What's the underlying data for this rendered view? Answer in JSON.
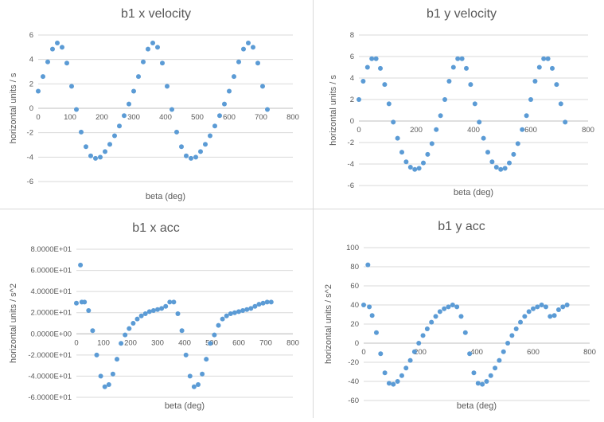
{
  "chart_data": [
    {
      "type": "scatter",
      "title": "b1 x velocity",
      "xlabel": "beta (deg)",
      "ylabel": "horizontal units / s",
      "xlim": [
        0,
        800
      ],
      "ylim": [
        -6,
        6
      ],
      "x_ticks": [
        "0",
        "100",
        "200",
        "300",
        "400",
        "500",
        "600",
        "700",
        "800"
      ],
      "y_ticks": [
        "6",
        "4",
        "2",
        "0",
        "-2",
        "-4",
        "-6"
      ],
      "grid": true,
      "color": "#5b9bd5",
      "series": [
        {
          "x": [
            0,
            15,
            30,
            45,
            60,
            75,
            90,
            105,
            120,
            135,
            150,
            165,
            180,
            195,
            210,
            225,
            240,
            255,
            270,
            285,
            300,
            315,
            330,
            345,
            360,
            375,
            390,
            405,
            420,
            435,
            450,
            465,
            480,
            495,
            510,
            525,
            540,
            555,
            570,
            585,
            600,
            615,
            630,
            645,
            660,
            675,
            690,
            705,
            720
          ],
          "y": [
            1.4,
            2.6,
            3.8,
            4.85,
            5.35,
            5.0,
            3.7,
            1.8,
            -0.1,
            -1.95,
            -3.15,
            -3.9,
            -4.1,
            -4.0,
            -3.55,
            -2.95,
            -2.25,
            -1.45,
            -0.6,
            0.35,
            1.4,
            2.6,
            3.8,
            4.85,
            5.35,
            5.0,
            3.7,
            1.8,
            -0.1,
            -1.95,
            -3.15,
            -3.9,
            -4.1,
            -4.0,
            -3.55,
            -2.95,
            -2.25,
            -1.45,
            -0.6,
            0.35,
            1.4,
            2.6,
            3.8,
            4.85,
            5.35,
            5.0,
            3.7,
            1.8,
            -0.1
          ]
        }
      ]
    },
    {
      "type": "scatter",
      "title": "b1 y velocity",
      "xlabel": "beta (deg)",
      "ylabel": "horizontal units / s",
      "xlim": [
        0,
        800
      ],
      "ylim": [
        -6,
        8
      ],
      "x_ticks": [
        "0",
        "200",
        "400",
        "600",
        "800"
      ],
      "y_ticks": [
        "8",
        "6",
        "4",
        "2",
        "0",
        "-2",
        "-4",
        "-6"
      ],
      "grid": true,
      "color": "#5b9bd5",
      "series": [
        {
          "x": [
            0,
            15,
            30,
            45,
            60,
            75,
            90,
            105,
            120,
            135,
            150,
            165,
            180,
            195,
            210,
            225,
            240,
            255,
            270,
            285,
            300,
            315,
            330,
            345,
            360,
            375,
            390,
            405,
            420,
            435,
            450,
            465,
            480,
            495,
            510,
            525,
            540,
            555,
            570,
            585,
            600,
            615,
            630,
            645,
            660,
            675,
            690,
            705,
            720
          ],
          "y": [
            2.0,
            3.7,
            5.0,
            5.8,
            5.8,
            4.9,
            3.4,
            1.6,
            -0.1,
            -1.6,
            -2.9,
            -3.8,
            -4.3,
            -4.5,
            -4.4,
            -3.9,
            -3.1,
            -2.1,
            -0.8,
            0.5,
            2.0,
            3.7,
            5.0,
            5.8,
            5.8,
            4.9,
            3.4,
            1.6,
            -0.1,
            -1.6,
            -2.9,
            -3.8,
            -4.3,
            -4.5,
            -4.4,
            -3.9,
            -3.1,
            -2.1,
            -0.8,
            0.5,
            2.0,
            3.7,
            5.0,
            5.8,
            5.8,
            4.9,
            3.4,
            1.6,
            -0.1
          ]
        }
      ]
    },
    {
      "type": "scatter",
      "title": "b1 x acc",
      "xlabel": "beta (deg)",
      "ylabel": "horizontal units / s^2",
      "xlim": [
        0,
        800
      ],
      "ylim": [
        -60,
        80
      ],
      "x_ticks": [
        "0",
        "100",
        "200",
        "300",
        "400",
        "500",
        "600",
        "700",
        "800"
      ],
      "y_ticks": [
        "8.0000E+01",
        "6.0000E+01",
        "4.0000E+01",
        "2.0000E+01",
        "0.0000E+00",
        "-2.0000E+01",
        "-4.0000E+01",
        "-6.0000E+01"
      ],
      "grid": true,
      "color": "#5b9bd5",
      "series": [
        {
          "x": [
            0,
            15,
            20,
            30,
            45,
            60,
            75,
            90,
            105,
            120,
            135,
            150,
            165,
            180,
            195,
            210,
            225,
            240,
            255,
            270,
            285,
            300,
            315,
            330,
            345,
            360,
            375,
            390,
            405,
            420,
            435,
            450,
            465,
            480,
            495,
            510,
            525,
            540,
            555,
            570,
            585,
            600,
            615,
            630,
            645,
            660,
            675,
            690,
            705,
            720
          ],
          "y": [
            29,
            65,
            30,
            30,
            22,
            3,
            -20,
            -40,
            -50,
            -48,
            -38,
            -24,
            -9,
            -1,
            5,
            10,
            14,
            17,
            19,
            21,
            22,
            23,
            24,
            26,
            30,
            30,
            19,
            3,
            -20,
            -40,
            -50,
            -48,
            -38,
            -24,
            -9,
            -1,
            8,
            14,
            17,
            19,
            20,
            21,
            22,
            23,
            24,
            26,
            28,
            29,
            30,
            30
          ]
        }
      ]
    },
    {
      "type": "scatter",
      "title": "b1 y acc",
      "xlabel": "beta (deg)",
      "ylabel": "horizontal units / s^2",
      "xlim": [
        0,
        800
      ],
      "ylim": [
        -60,
        100
      ],
      "x_ticks": [
        "0",
        "200",
        "400",
        "600",
        "800"
      ],
      "y_ticks": [
        "100",
        "80",
        "60",
        "40",
        "20",
        "0",
        "-20",
        "-40",
        "-60"
      ],
      "grid": true,
      "color": "#5b9bd5",
      "series": [
        {
          "x": [
            0,
            15,
            20,
            30,
            45,
            60,
            75,
            90,
            105,
            120,
            135,
            150,
            165,
            180,
            195,
            210,
            225,
            240,
            255,
            270,
            285,
            300,
            315,
            330,
            345,
            360,
            375,
            390,
            405,
            420,
            435,
            450,
            465,
            480,
            495,
            510,
            525,
            540,
            555,
            570,
            585,
            600,
            615,
            630,
            645,
            660,
            675,
            690,
            705,
            720
          ],
          "y": [
            40,
            82,
            38,
            29,
            11,
            -11,
            -31,
            -42,
            -43,
            -40,
            -34,
            -26,
            -18,
            -9,
            0,
            8,
            15,
            22,
            28,
            33,
            36,
            38,
            40,
            38,
            28,
            11,
            -11,
            -31,
            -42,
            -43,
            -40,
            -34,
            -26,
            -18,
            -9,
            0,
            8,
            15,
            22,
            28,
            33,
            36,
            38,
            40,
            38,
            28,
            29,
            35,
            38,
            40
          ]
        }
      ]
    }
  ]
}
